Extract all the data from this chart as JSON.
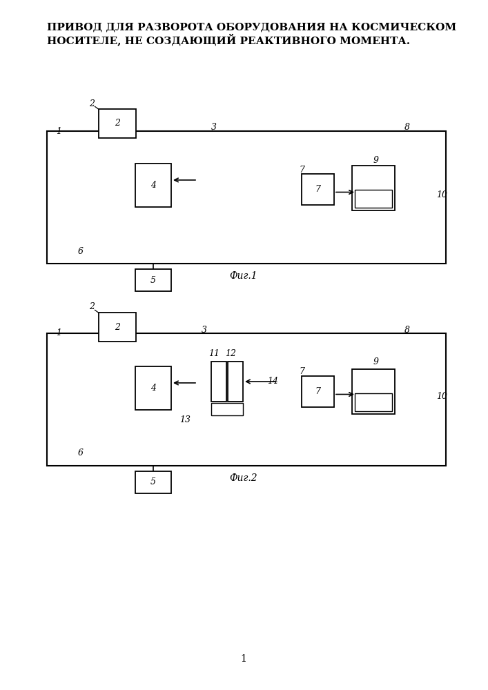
{
  "title_line1": "ПРИВОД ДЛЯ РАЗВОРОТА ОБОРУДОВАНИЯ НА КОСМИЧЕСКОМ",
  "title_line2": "НОСИТЕЛЕ, НЕ СОЗДАЮЩИЙ РЕАКТИВНОГО МОМЕНТА.",
  "fig1_caption": "Фиг.1",
  "fig2_caption": "Фиг.2",
  "page_number": "1"
}
